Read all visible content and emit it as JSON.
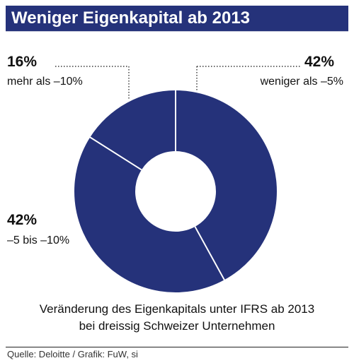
{
  "title": "Weniger Eigenkapital ab 2013",
  "caption": {
    "line1": "Veränderung des Eigenkapitals unter IFRS ab 2013",
    "line2": "bei dreissig Schweizer Unternehmen"
  },
  "source": "Quelle: Deloitte / Grafik: FuW, si",
  "colors": {
    "slice": "#25327a",
    "title_bar": "#25327a",
    "divider": "#ffffff"
  },
  "chart_data": {
    "type": "pie",
    "donut": true,
    "title": "Weniger Eigenkapital ab 2013",
    "slices": [
      {
        "value": 42,
        "label_value": "42%",
        "label": "weniger als  –5%"
      },
      {
        "value": 42,
        "label_value": "42%",
        "label": "–5 bis –10%"
      },
      {
        "value": 16,
        "label_value": "16%",
        "label": "mehr als  –10%"
      }
    ]
  }
}
